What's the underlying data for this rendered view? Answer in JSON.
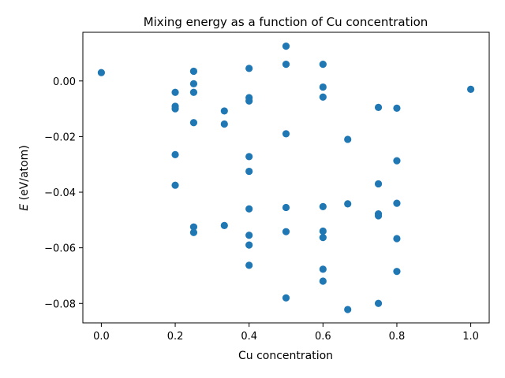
{
  "chart_data": {
    "type": "scatter",
    "title": "Mixing energy as a function of Cu concentration",
    "xlabel": "Cu concentration",
    "ylabel_var": "E",
    "ylabel_unit": " (eV/atom)",
    "xlim": [
      -0.05,
      1.05
    ],
    "ylim": [
      -0.087,
      0.0175
    ],
    "xticks": [
      0.0,
      0.2,
      0.4,
      0.6,
      0.8,
      1.0
    ],
    "xtick_labels": [
      "0.0",
      "0.2",
      "0.4",
      "0.6",
      "0.8",
      "1.0"
    ],
    "yticks": [
      0.0,
      -0.02,
      -0.04,
      -0.06,
      -0.08
    ],
    "ytick_labels": [
      "0.00",
      "−0.02",
      "−0.04",
      "−0.06",
      "−0.08"
    ],
    "grid": false,
    "legend": "none",
    "marker_color": "#1f77b4",
    "points": [
      {
        "x": 0.0,
        "y": 0.003
      },
      {
        "x": 0.2,
        "y": -0.0041
      },
      {
        "x": 0.2,
        "y": -0.0091
      },
      {
        "x": 0.2,
        "y": -0.01
      },
      {
        "x": 0.2,
        "y": -0.0265
      },
      {
        "x": 0.2,
        "y": -0.0375
      },
      {
        "x": 0.25,
        "y": 0.0035
      },
      {
        "x": 0.25,
        "y": -0.001
      },
      {
        "x": 0.25,
        "y": -0.0041
      },
      {
        "x": 0.25,
        "y": -0.015
      },
      {
        "x": 0.25,
        "y": -0.0525
      },
      {
        "x": 0.25,
        "y": -0.0545
      },
      {
        "x": 0.333,
        "y": -0.0108
      },
      {
        "x": 0.333,
        "y": -0.0155
      },
      {
        "x": 0.333,
        "y": -0.052
      },
      {
        "x": 0.4,
        "y": 0.0045
      },
      {
        "x": 0.4,
        "y": -0.006
      },
      {
        "x": 0.4,
        "y": -0.0072
      },
      {
        "x": 0.4,
        "y": -0.0272
      },
      {
        "x": 0.4,
        "y": -0.0325
      },
      {
        "x": 0.4,
        "y": -0.046
      },
      {
        "x": 0.4,
        "y": -0.0555
      },
      {
        "x": 0.4,
        "y": -0.059
      },
      {
        "x": 0.4,
        "y": -0.0663
      },
      {
        "x": 0.5,
        "y": 0.0125
      },
      {
        "x": 0.5,
        "y": 0.006
      },
      {
        "x": 0.5,
        "y": -0.019
      },
      {
        "x": 0.5,
        "y": -0.0455
      },
      {
        "x": 0.5,
        "y": -0.0542
      },
      {
        "x": 0.5,
        "y": -0.078
      },
      {
        "x": 0.6,
        "y": 0.006
      },
      {
        "x": 0.6,
        "y": -0.0022
      },
      {
        "x": 0.6,
        "y": -0.0058
      },
      {
        "x": 0.6,
        "y": -0.0452
      },
      {
        "x": 0.6,
        "y": -0.054
      },
      {
        "x": 0.6,
        "y": -0.0563
      },
      {
        "x": 0.6,
        "y": -0.0677
      },
      {
        "x": 0.6,
        "y": -0.072
      },
      {
        "x": 0.667,
        "y": -0.021
      },
      {
        "x": 0.667,
        "y": -0.0442
      },
      {
        "x": 0.667,
        "y": -0.0822
      },
      {
        "x": 0.75,
        "y": -0.0095
      },
      {
        "x": 0.75,
        "y": -0.037
      },
      {
        "x": 0.75,
        "y": -0.0478
      },
      {
        "x": 0.75,
        "y": -0.0485
      },
      {
        "x": 0.75,
        "y": -0.08
      },
      {
        "x": 0.8,
        "y": -0.0098
      },
      {
        "x": 0.8,
        "y": -0.0287
      },
      {
        "x": 0.8,
        "y": -0.044
      },
      {
        "x": 0.8,
        "y": -0.0567
      },
      {
        "x": 0.8,
        "y": -0.0685
      },
      {
        "x": 1.0,
        "y": -0.003
      }
    ]
  }
}
